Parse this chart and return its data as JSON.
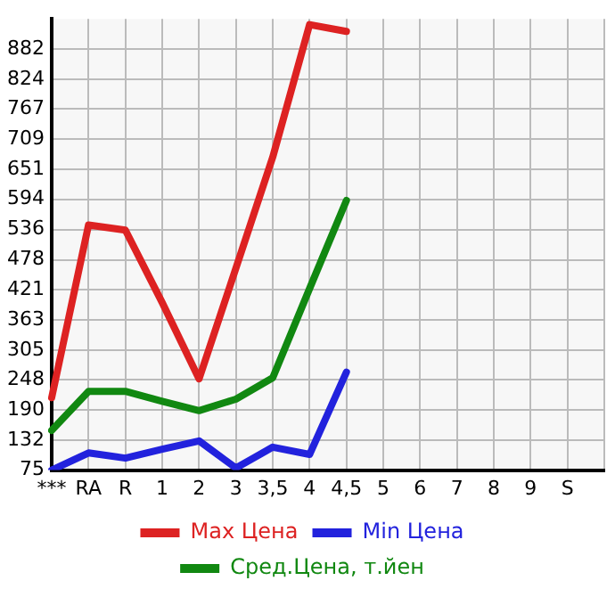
{
  "chart_data": {
    "type": "line",
    "categories": [
      "***",
      "RA",
      "R",
      "1",
      "2",
      "3",
      "3,5",
      "4",
      "4,5",
      "5",
      "6",
      "7",
      "8",
      "9",
      "S",
      null
    ],
    "series": [
      {
        "name": "Max Цена",
        "color": "#dd2222",
        "values": [
          214,
          545,
          535,
          396,
          250,
          462,
          675,
          929,
          916,
          null,
          null,
          null,
          null,
          null,
          null,
          null
        ]
      },
      {
        "name": "Min Цена",
        "color": "#2222dd",
        "values": [
          75,
          108,
          98,
          115,
          131,
          79,
          119,
          105,
          263,
          null,
          null,
          null,
          null,
          null,
          null,
          null
        ]
      },
      {
        "name": "Сред.Цена, т.йен",
        "color": "#118811",
        "values": [
          151,
          226,
          226,
          207,
          189,
          211,
          252,
          423,
          592,
          null,
          null,
          null,
          null,
          null,
          null,
          null
        ]
      }
    ],
    "ylim": [
      75,
      940
    ],
    "yticks": [
      75,
      132,
      190,
      248,
      305,
      363,
      421,
      478,
      536,
      594,
      651,
      709,
      767,
      824,
      882
    ],
    "grid": true,
    "legend": "bottom",
    "marker": "none",
    "line_style": "solid"
  }
}
